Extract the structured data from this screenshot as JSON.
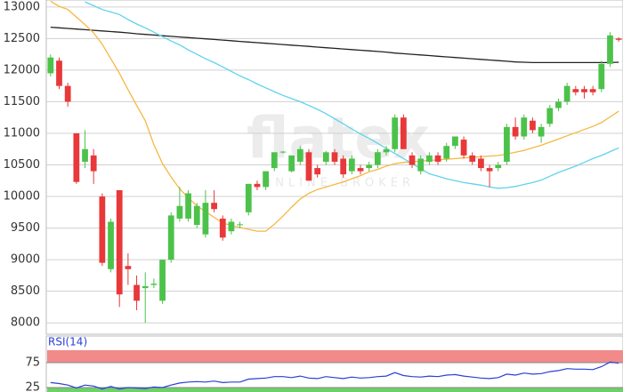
{
  "chart_data": [
    {
      "type": "candlestick",
      "watermark": "flatex",
      "watermark_subtitle": "ONLINE BROKER",
      "ylim": [
        7820,
        13110
      ],
      "yticks": [
        8000,
        8500,
        9000,
        9500,
        10000,
        10500,
        11000,
        11500,
        12000,
        12500,
        13000
      ],
      "grid": true,
      "up_color": "#4cc24a",
      "down_color": "#e8383a",
      "open": [
        11950,
        12150,
        11750,
        11000,
        10550,
        10650,
        10000,
        8850,
        10100,
        8900,
        8600,
        8550,
        8600,
        8350,
        9000,
        9650,
        9650,
        9550,
        9400,
        9900,
        9650,
        9450,
        9550,
        9750,
        10200,
        10150,
        10450,
        10700,
        10400,
        10550,
        10700,
        10450,
        10550,
        10700,
        10600,
        10400,
        10450,
        10450,
        10500,
        10700,
        10750,
        11250,
        10650,
        10400,
        10550,
        10650,
        10600,
        10800,
        10900,
        10650,
        10600,
        10450,
        10450,
        10550,
        11100,
        10950,
        11200,
        10950,
        11150,
        11400,
        11500,
        11700,
        11700,
        11700,
        11700,
        12100,
        12500
      ],
      "high": [
        12250,
        12200,
        11800,
        11000,
        11050,
        10750,
        10050,
        9650,
        10100,
        9100,
        8750,
        8800,
        8700,
        9000,
        9750,
        10150,
        10100,
        9900,
        10100,
        10100,
        9700,
        9650,
        9600,
        10200,
        10250,
        10400,
        10700,
        10720,
        10650,
        10800,
        10750,
        10500,
        10720,
        10750,
        10650,
        10650,
        10500,
        10550,
        10750,
        10800,
        11300,
        11300,
        10700,
        10650,
        10700,
        10700,
        10850,
        10950,
        10950,
        10700,
        10650,
        10500,
        10550,
        11150,
        11250,
        11300,
        11250,
        11150,
        11450,
        11550,
        11800,
        11750,
        11750,
        11750,
        12150,
        12600,
        12520
      ],
      "low": [
        11900,
        11700,
        11420,
        10200,
        10450,
        10200,
        8900,
        8800,
        8250,
        8600,
        8200,
        8000,
        8550,
        8300,
        8950,
        9600,
        9600,
        9500,
        9350,
        9750,
        9300,
        9400,
        9500,
        9700,
        10100,
        10100,
        10400,
        10680,
        10380,
        10500,
        10250,
        10300,
        10500,
        10500,
        10300,
        10350,
        10350,
        10400,
        10450,
        10650,
        10700,
        10750,
        10450,
        10350,
        10500,
        10500,
        10550,
        10750,
        10600,
        10500,
        10400,
        10150,
        10400,
        10500,
        10900,
        10900,
        11000,
        10850,
        11100,
        11350,
        11450,
        11600,
        11550,
        11600,
        11650,
        12050,
        12450
      ],
      "close": [
        12200,
        11750,
        11500,
        10230,
        10750,
        10400,
        8950,
        9600,
        8450,
        8850,
        8350,
        8580,
        8620,
        9000,
        9700,
        9850,
        10050,
        9850,
        9900,
        9800,
        9350,
        9600,
        9560,
        10200,
        10150,
        10400,
        10700,
        10710,
        10650,
        10750,
        10250,
        10350,
        10700,
        10550,
        10350,
        10600,
        10400,
        10500,
        10700,
        10750,
        11250,
        10750,
        10500,
        10600,
        10650,
        10550,
        10800,
        10950,
        10650,
        10550,
        10450,
        10400,
        10500,
        11100,
        10950,
        11250,
        11050,
        11100,
        11400,
        11500,
        11750,
        11650,
        11650,
        11650,
        12100,
        12550,
        12480
      ],
      "lines": [
        {
          "color": "#222222",
          "values": [
            12680,
            12670,
            12660,
            12650,
            12640,
            12630,
            12620,
            12610,
            12600,
            12590,
            12575,
            12565,
            12555,
            12545,
            12535,
            12525,
            12515,
            12505,
            12495,
            12485,
            12475,
            12465,
            12455,
            12445,
            12435,
            12425,
            12415,
            12405,
            12395,
            12385,
            12375,
            12365,
            12355,
            12345,
            12335,
            12325,
            12315,
            12305,
            12295,
            12285,
            12270,
            12260,
            12250,
            12240,
            12230,
            12220,
            12210,
            12200,
            12190,
            12180,
            12170,
            12160,
            12150,
            12140,
            12130,
            12125,
            12120,
            12120,
            12120,
            12120,
            12120,
            12120,
            12120,
            12120,
            12120,
            12120,
            12125
          ]
        },
        {
          "color": "#f5b841",
          "values": [
            13090,
            13010,
            12960,
            12840,
            12720,
            12590,
            12410,
            12180,
            11950,
            11690,
            11440,
            11200,
            10820,
            10520,
            10310,
            10120,
            9980,
            9850,
            9760,
            9670,
            9580,
            9540,
            9510,
            9480,
            9450,
            9450,
            9560,
            9690,
            9830,
            9960,
            10050,
            10110,
            10150,
            10190,
            10230,
            10280,
            10330,
            10390,
            10430,
            10480,
            10520,
            10540,
            10550,
            10560,
            10570,
            10580,
            10590,
            10600,
            10610,
            10620,
            10630,
            10640,
            10650,
            10670,
            10700,
            10730,
            10770,
            10810,
            10860,
            10910,
            10960,
            11010,
            11060,
            11110,
            11170,
            11260,
            11350
          ]
        },
        {
          "color": "#5fd3ec",
          "values": [
            null,
            null,
            null,
            null,
            13080,
            13020,
            12960,
            12920,
            12880,
            12800,
            12730,
            12670,
            12600,
            12530,
            12460,
            12400,
            12320,
            12250,
            12180,
            12120,
            12050,
            11980,
            11910,
            11850,
            11780,
            11720,
            11660,
            11600,
            11550,
            11500,
            11440,
            11380,
            11310,
            11230,
            11150,
            11070,
            10990,
            10920,
            10840,
            10760,
            10680,
            10600,
            10520,
            10440,
            10360,
            10320,
            10280,
            10250,
            10220,
            10200,
            10180,
            10150,
            10130,
            10140,
            10160,
            10190,
            10220,
            10260,
            10320,
            10380,
            10430,
            10480,
            10540,
            10600,
            10650,
            10710,
            10770
          ]
        }
      ]
    },
    {
      "type": "line",
      "title": "RSI(14)",
      "ylim": [
        16,
        100
      ],
      "yticks": [
        25,
        75
      ],
      "band_colors": [
        "#6fcf68",
        "#f28a8a"
      ],
      "color": "#2a3fd8",
      "values": [
        35,
        33,
        30,
        24,
        30,
        28,
        22,
        27,
        22,
        25,
        24,
        23,
        26,
        25,
        30,
        34,
        36,
        37,
        36,
        38,
        35,
        36,
        36,
        42,
        43,
        44,
        47,
        47,
        45,
        48,
        44,
        43,
        47,
        45,
        43,
        46,
        44,
        45,
        47,
        48,
        55,
        49,
        47,
        46,
        48,
        47,
        50,
        51,
        48,
        46,
        44,
        43,
        45,
        52,
        50,
        54,
        52,
        53,
        57,
        59,
        63,
        62,
        62,
        61,
        67,
        76,
        74
      ]
    }
  ]
}
